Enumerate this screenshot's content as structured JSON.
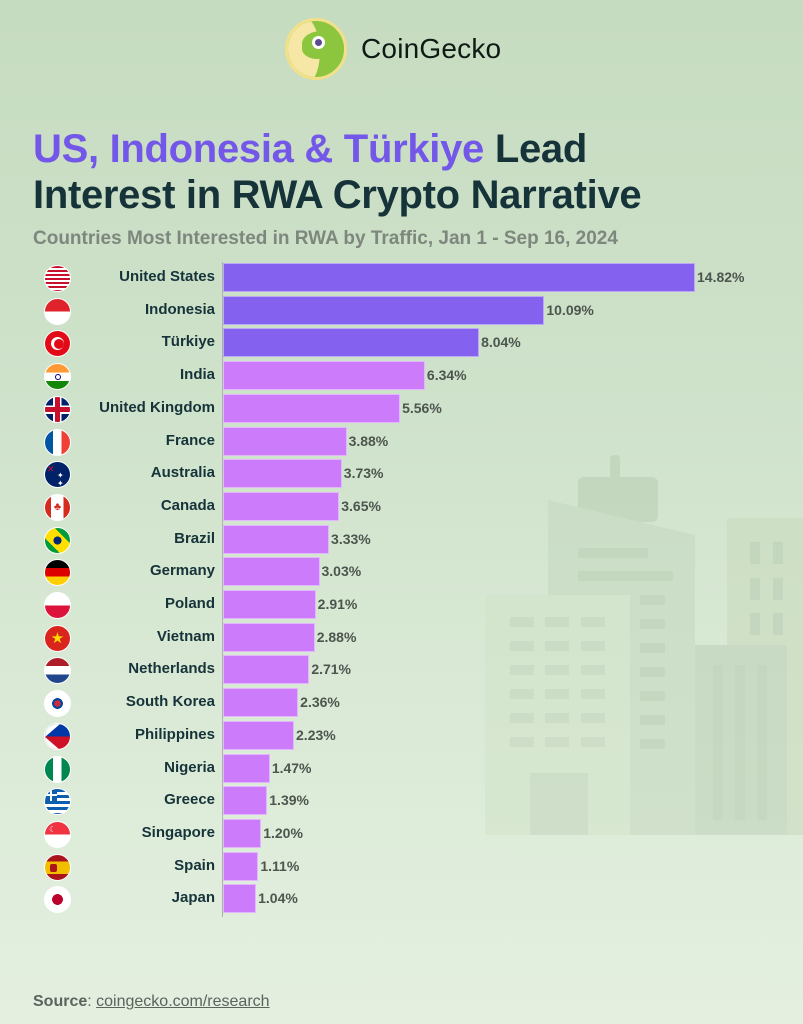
{
  "brand": {
    "name": "CoinGecko",
    "logo_icon": "gecko-logo-icon"
  },
  "header": {
    "title_highlight": "US, Indonesia & Türkiye",
    "title_rest_line1": " Lead",
    "title_line2": "Interest in RWA Crypto Narrative",
    "subtitle": "Countries Most Interested in RWA by Traffic, Jan 1 - Sep 16, 2024"
  },
  "colors": {
    "top3_bar": "#8461ef",
    "other_bar": "#cc7cfb",
    "title_highlight": "#7357e8",
    "title_dark": "#16333a"
  },
  "footer": {
    "source_label": "Source",
    "source_link": "coingecko.com/research"
  },
  "chart_data": {
    "type": "bar",
    "orientation": "horizontal",
    "title": "US, Indonesia & Türkiye Lead Interest in RWA Crypto Narrative",
    "subtitle": "Countries Most Interested in RWA by Traffic, Jan 1 - Sep 16, 2024",
    "xlabel": "",
    "ylabel": "",
    "unit": "%",
    "grid": false,
    "legend": null,
    "categories": [
      "United States",
      "Indonesia",
      "Türkiye",
      "India",
      "United Kingdom",
      "France",
      "Australia",
      "Canada",
      "Brazil",
      "Germany",
      "Poland",
      "Vietnam",
      "Netherlands",
      "South Korea",
      "Philippines",
      "Nigeria",
      "Greece",
      "Singapore",
      "Spain",
      "Japan"
    ],
    "values": [
      14.82,
      10.09,
      8.04,
      6.34,
      5.56,
      3.88,
      3.73,
      3.65,
      3.33,
      3.03,
      2.91,
      2.88,
      2.71,
      2.36,
      2.23,
      1.47,
      1.39,
      1.2,
      1.11,
      1.04
    ],
    "value_labels": [
      "14.82%",
      "10.09%",
      "8.04%",
      "6.34%",
      "5.56%",
      "3.88%",
      "3.73%",
      "3.65%",
      "3.33%",
      "3.03%",
      "2.91%",
      "2.88%",
      "2.71%",
      "2.36%",
      "2.23%",
      "1.47%",
      "1.39%",
      "1.20%",
      "1.11%",
      "1.04%"
    ],
    "highlighted": [
      "United States",
      "Indonesia",
      "Türkiye"
    ],
    "flags": [
      "us-flag-icon",
      "indonesia-flag-icon",
      "turkiye-flag-icon",
      "india-flag-icon",
      "uk-flag-icon",
      "france-flag-icon",
      "australia-flag-icon",
      "canada-flag-icon",
      "brazil-flag-icon",
      "germany-flag-icon",
      "poland-flag-icon",
      "vietnam-flag-icon",
      "netherlands-flag-icon",
      "south-korea-flag-icon",
      "philippines-flag-icon",
      "nigeria-flag-icon",
      "greece-flag-icon",
      "singapore-flag-icon",
      "spain-flag-icon",
      "japan-flag-icon"
    ]
  }
}
